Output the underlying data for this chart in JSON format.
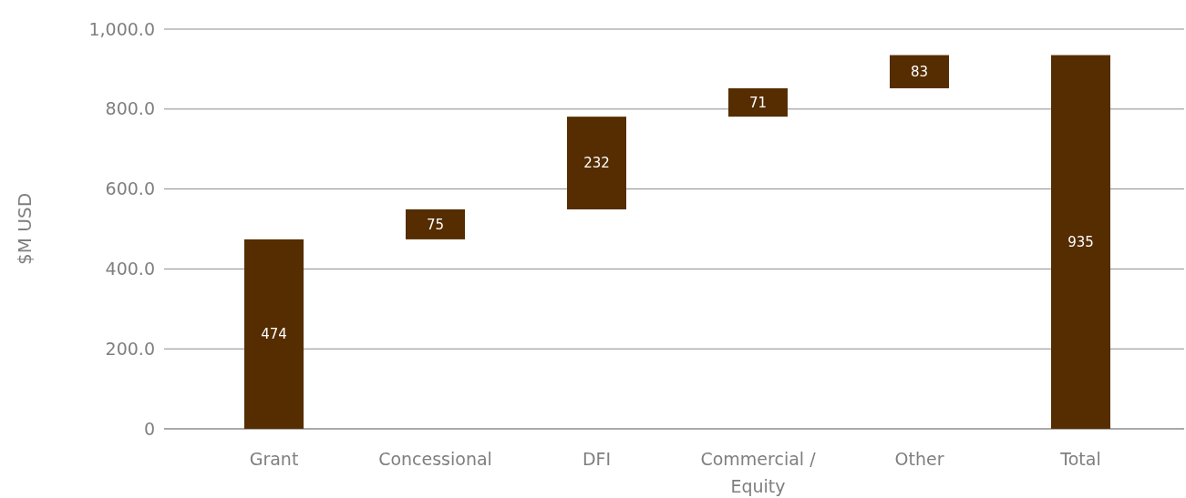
{
  "chart_data": {
    "type": "bar",
    "ylabel": "$M USD",
    "categories": [
      "Grant",
      "Concessional",
      "DFI",
      "Commercial / Equity",
      "Other",
      "Total"
    ],
    "values": [
      474,
      75,
      232,
      71,
      83,
      935
    ],
    "base": [
      0,
      474,
      549,
      781,
      852,
      0
    ],
    "color": "#552d00",
    "ylim": [
      0,
      1000
    ],
    "yticks": [
      {
        "value": 0,
        "label": "0"
      },
      {
        "value": 200,
        "label": "200.0"
      },
      {
        "value": 400,
        "label": "400.0"
      },
      {
        "value": 600,
        "label": "600.0"
      },
      {
        "value": 800,
        "label": "800.0"
      },
      {
        "value": 1000,
        "label": "1,000.0"
      }
    ],
    "grid": "y",
    "data_labels": true
  }
}
